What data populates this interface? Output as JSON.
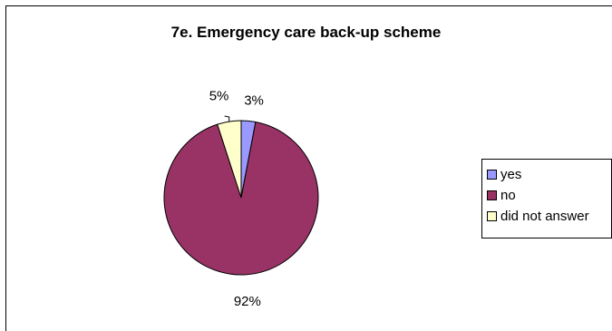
{
  "chart_data": {
    "type": "pie",
    "title": "7e. Emergency care back-up scheme",
    "categories": [
      "yes",
      "no",
      "did not answer"
    ],
    "values": [
      3,
      92,
      5
    ],
    "data_labels": [
      "3%",
      "92%",
      "5%"
    ],
    "colors": [
      "#9999ff",
      "#993366",
      "#ffffcc"
    ],
    "legend_placement": "right"
  }
}
